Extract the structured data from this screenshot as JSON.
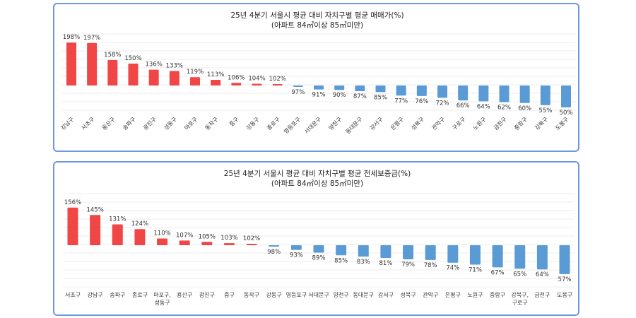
{
  "chart_data": [
    {
      "type": "bar",
      "title": "25년 4분기 서울시 평균 대비 자치구별 평균 매매가(%)",
      "subtitle": "(아파트 84㎡이상 85㎡미만)",
      "baseline": 100,
      "unit": "%",
      "categories": [
        "강남구",
        "서초구",
        "용산구",
        "송파구",
        "광진구",
        "성동구",
        "마포구",
        "동작구",
        "중구",
        "강동구",
        "종로구",
        "영등포구",
        "서대문구",
        "양천구",
        "동대문구",
        "강서구",
        "은평구",
        "성북구",
        "관악구",
        "구로구",
        "노원구",
        "금천구",
        "중랑구",
        "강북구",
        "도봉구"
      ],
      "values": [
        198,
        197,
        158,
        150,
        136,
        133,
        119,
        113,
        106,
        104,
        102,
        97,
        91,
        90,
        87,
        85,
        77,
        76,
        72,
        66,
        64,
        62,
        60,
        55,
        50
      ],
      "grid": true,
      "label_rotation": "45deg",
      "colors": {
        "above": "#f04646",
        "below": "#5b9bd5"
      }
    },
    {
      "type": "bar",
      "title": "25년 4분기 서울시 평균 대비 자치구별 평균 전세보증금(%)",
      "subtitle": "(아파트 84㎡이상 85㎡미만)",
      "baseline": 100,
      "unit": "%",
      "categories": [
        "서초구",
        "강남구",
        "송파구",
        "종로구",
        "마포구,\n성동구",
        "용산구",
        "광진구",
        "중구",
        "동작구",
        "강동구",
        "영등포구",
        "서대문구",
        "양천구",
        "동대문구",
        "강서구",
        "성북구",
        "관악구",
        "은평구",
        "노원구",
        "중랑구",
        "강북구,\n구로구",
        "금천구",
        "도봉구"
      ],
      "values": [
        156,
        145,
        131,
        124,
        110,
        107,
        105,
        103,
        102,
        98,
        93,
        89,
        85,
        83,
        81,
        79,
        78,
        74,
        71,
        67,
        65,
        64,
        57
      ],
      "grid": true,
      "colors": {
        "above": "#f04646",
        "below": "#5b9bd5"
      }
    }
  ]
}
